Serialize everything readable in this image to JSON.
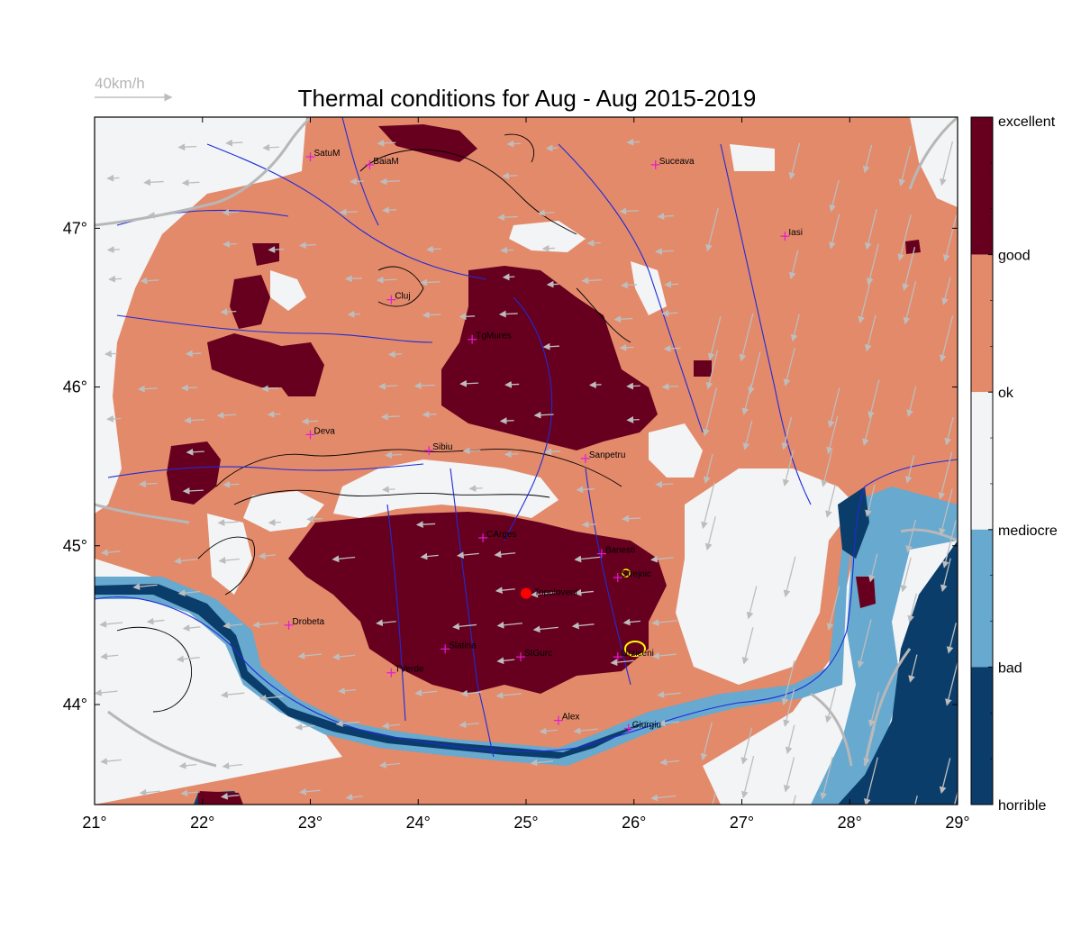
{
  "title": "Thermal conditions for Aug - Aug  2015-2019",
  "scale": {
    "label": "40km/h"
  },
  "axes": {
    "x_ticks": [
      "21°",
      "22°",
      "23°",
      "24°",
      "25°",
      "26°",
      "27°",
      "28°",
      "29°"
    ],
    "y_ticks": [
      "44°",
      "45°",
      "46°",
      "47°"
    ]
  },
  "legend": {
    "labels": [
      "excellent",
      "good",
      "ok",
      "mediocre",
      "bad",
      "horrible"
    ],
    "colors": [
      "#67001f",
      "#e38a6b",
      "#f2f4f6",
      "#67a9cf",
      "#0b3d6b"
    ]
  },
  "cities": [
    {
      "name": "SatuM",
      "lon": 23.0,
      "lat": 47.45
    },
    {
      "name": "BaiaM",
      "lon": 23.55,
      "lat": 47.4
    },
    {
      "name": "Suceava",
      "lon": 26.2,
      "lat": 47.4
    },
    {
      "name": "Iasi",
      "lon": 27.4,
      "lat": 46.95
    },
    {
      "name": "Cluj",
      "lon": 23.75,
      "lat": 46.55
    },
    {
      "name": "TgMures",
      "lon": 24.5,
      "lat": 46.3
    },
    {
      "name": "Deva",
      "lon": 23.0,
      "lat": 45.7
    },
    {
      "name": "Sibiu",
      "lon": 24.1,
      "lat": 45.6
    },
    {
      "name": "Sanpetru",
      "lon": 25.55,
      "lat": 45.55
    },
    {
      "name": "CArges",
      "lon": 24.6,
      "lat": 45.05
    },
    {
      "name": "Banesti",
      "lon": 25.7,
      "lat": 44.95
    },
    {
      "name": "Strejnic",
      "lon": 25.85,
      "lat": 44.8
    },
    {
      "name": "Drobeta",
      "lon": 22.8,
      "lat": 44.5
    },
    {
      "name": "Slatina",
      "lon": 24.25,
      "lat": 44.35
    },
    {
      "name": "StGurc",
      "lon": 24.95,
      "lat": 44.3
    },
    {
      "name": "Urziceni",
      "lon": 25.85,
      "lat": 44.3
    },
    {
      "name": "TVerde",
      "lon": 23.75,
      "lat": 44.2
    },
    {
      "name": "Alex",
      "lon": 25.3,
      "lat": 43.9
    },
    {
      "name": "Giurgiu",
      "lon": 25.95,
      "lat": 43.85
    }
  ],
  "site": {
    "name": "Topoloveni",
    "lon": 25.0,
    "lat": 44.7,
    "color": "#ff0000"
  }
}
